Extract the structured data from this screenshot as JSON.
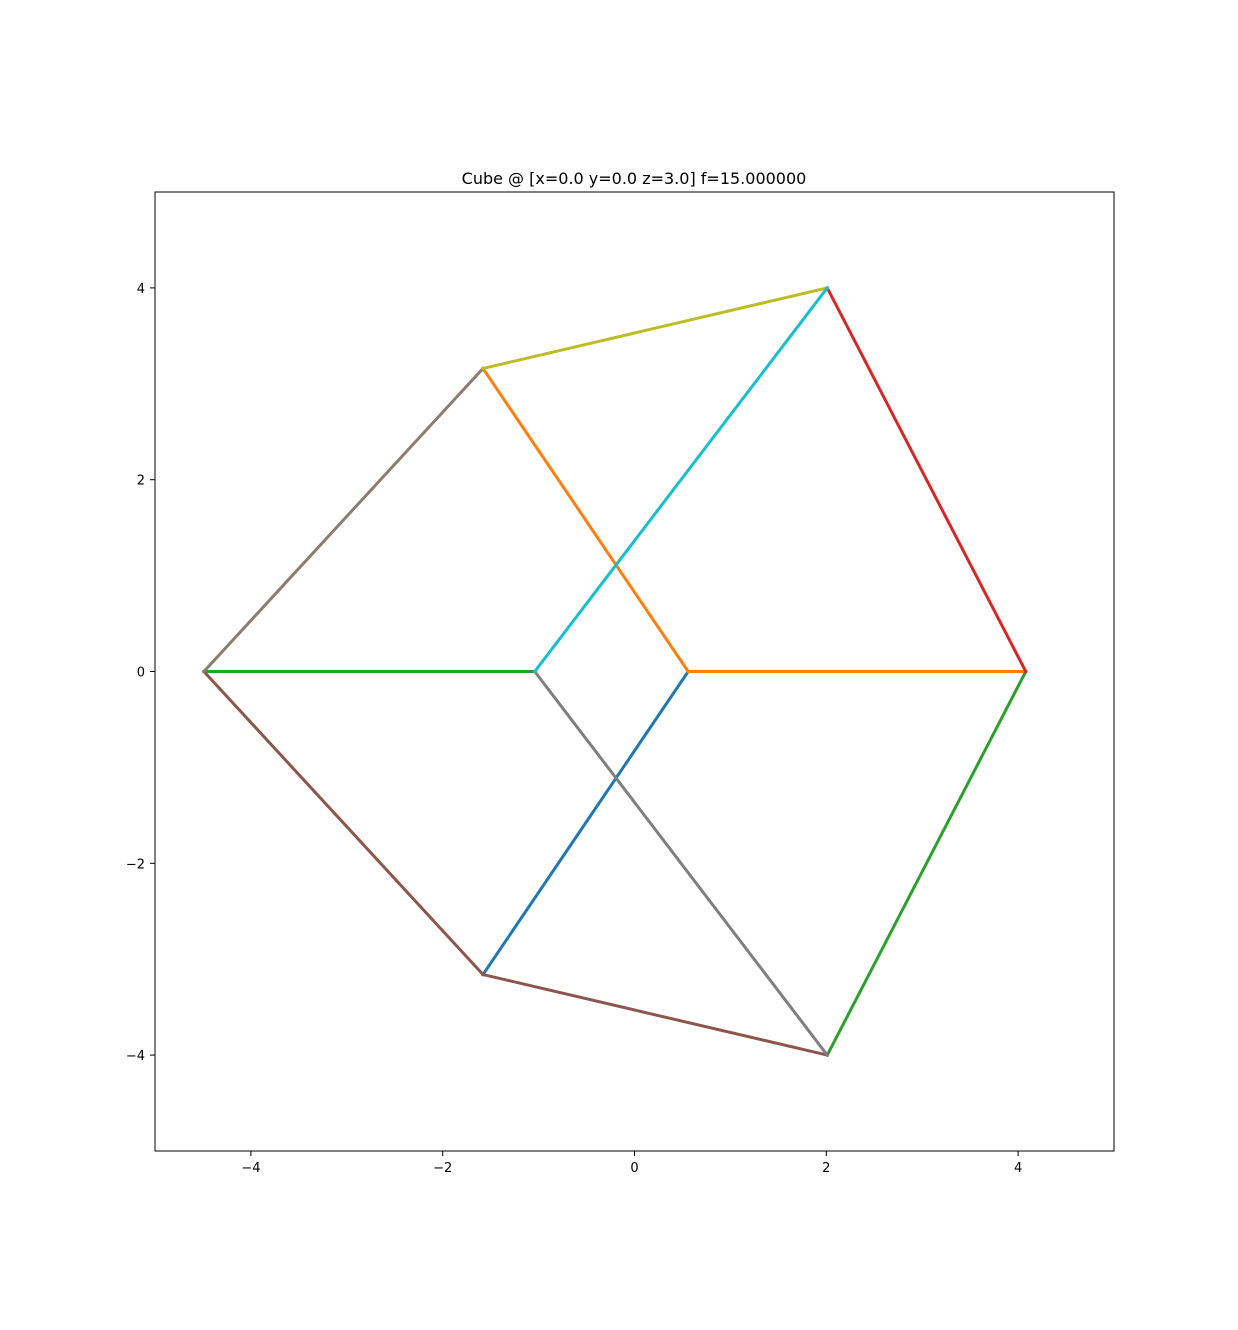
{
  "chart_data": {
    "type": "line",
    "title": "Cube @ [x=0.0 y=0.0 z=3.0] f=15.000000",
    "xlabel": "",
    "ylabel": "",
    "xlim": [
      -5,
      5
    ],
    "ylim": [
      -5,
      5
    ],
    "xticks": [
      -4,
      -2,
      0,
      2,
      4
    ],
    "yticks": [
      -4,
      -2,
      0,
      2,
      4
    ],
    "xtick_labels": [
      "−4",
      "−2",
      "0",
      "2",
      "4"
    ],
    "ytick_labels": [
      "−4",
      "−2",
      "0",
      "2",
      "4"
    ],
    "grid": false,
    "legend": "none",
    "series": [
      {
        "color": "#1f77b4",
        "x": [
          -1.58,
          0.56
        ],
        "y": [
          -3.16,
          0.0
        ]
      },
      {
        "color": "#ff7f0e",
        "x": [
          -1.58,
          0.56
        ],
        "y": [
          3.16,
          0.0
        ]
      },
      {
        "color": "#ff7f0e",
        "x": [
          0.56,
          4.08
        ],
        "y": [
          0.0,
          0.0
        ]
      },
      {
        "color": "#2ca02c",
        "x": [
          -4.49,
          -1.04
        ],
        "y": [
          0.0,
          0.0
        ]
      },
      {
        "color": "#2ca02c",
        "x": [
          4.08,
          2.01
        ],
        "y": [
          0.0,
          -4.0
        ]
      },
      {
        "color": "#d62728",
        "x": [
          2.01,
          4.08
        ],
        "y": [
          4.0,
          0.0
        ]
      },
      {
        "color": "#8c564b",
        "x": [
          -4.49,
          -1.58
        ],
        "y": [
          0.0,
          -3.16
        ]
      },
      {
        "color": "#8c564b",
        "x": [
          -1.58,
          2.01
        ],
        "y": [
          -3.16,
          -4.0
        ]
      },
      {
        "color": "#7f7f7f",
        "x": [
          -1.04,
          2.01
        ],
        "y": [
          0.0,
          -4.0
        ]
      },
      {
        "color": "#8c7d70",
        "x": [
          -4.49,
          -1.58
        ],
        "y": [
          0.0,
          3.16
        ]
      },
      {
        "color": "#bcbd22",
        "x": [
          -1.58,
          2.01
        ],
        "y": [
          3.16,
          4.0
        ]
      },
      {
        "color": "#17becf",
        "x": [
          -1.04,
          2.01
        ],
        "y": [
          0.0,
          4.0
        ]
      }
    ]
  }
}
